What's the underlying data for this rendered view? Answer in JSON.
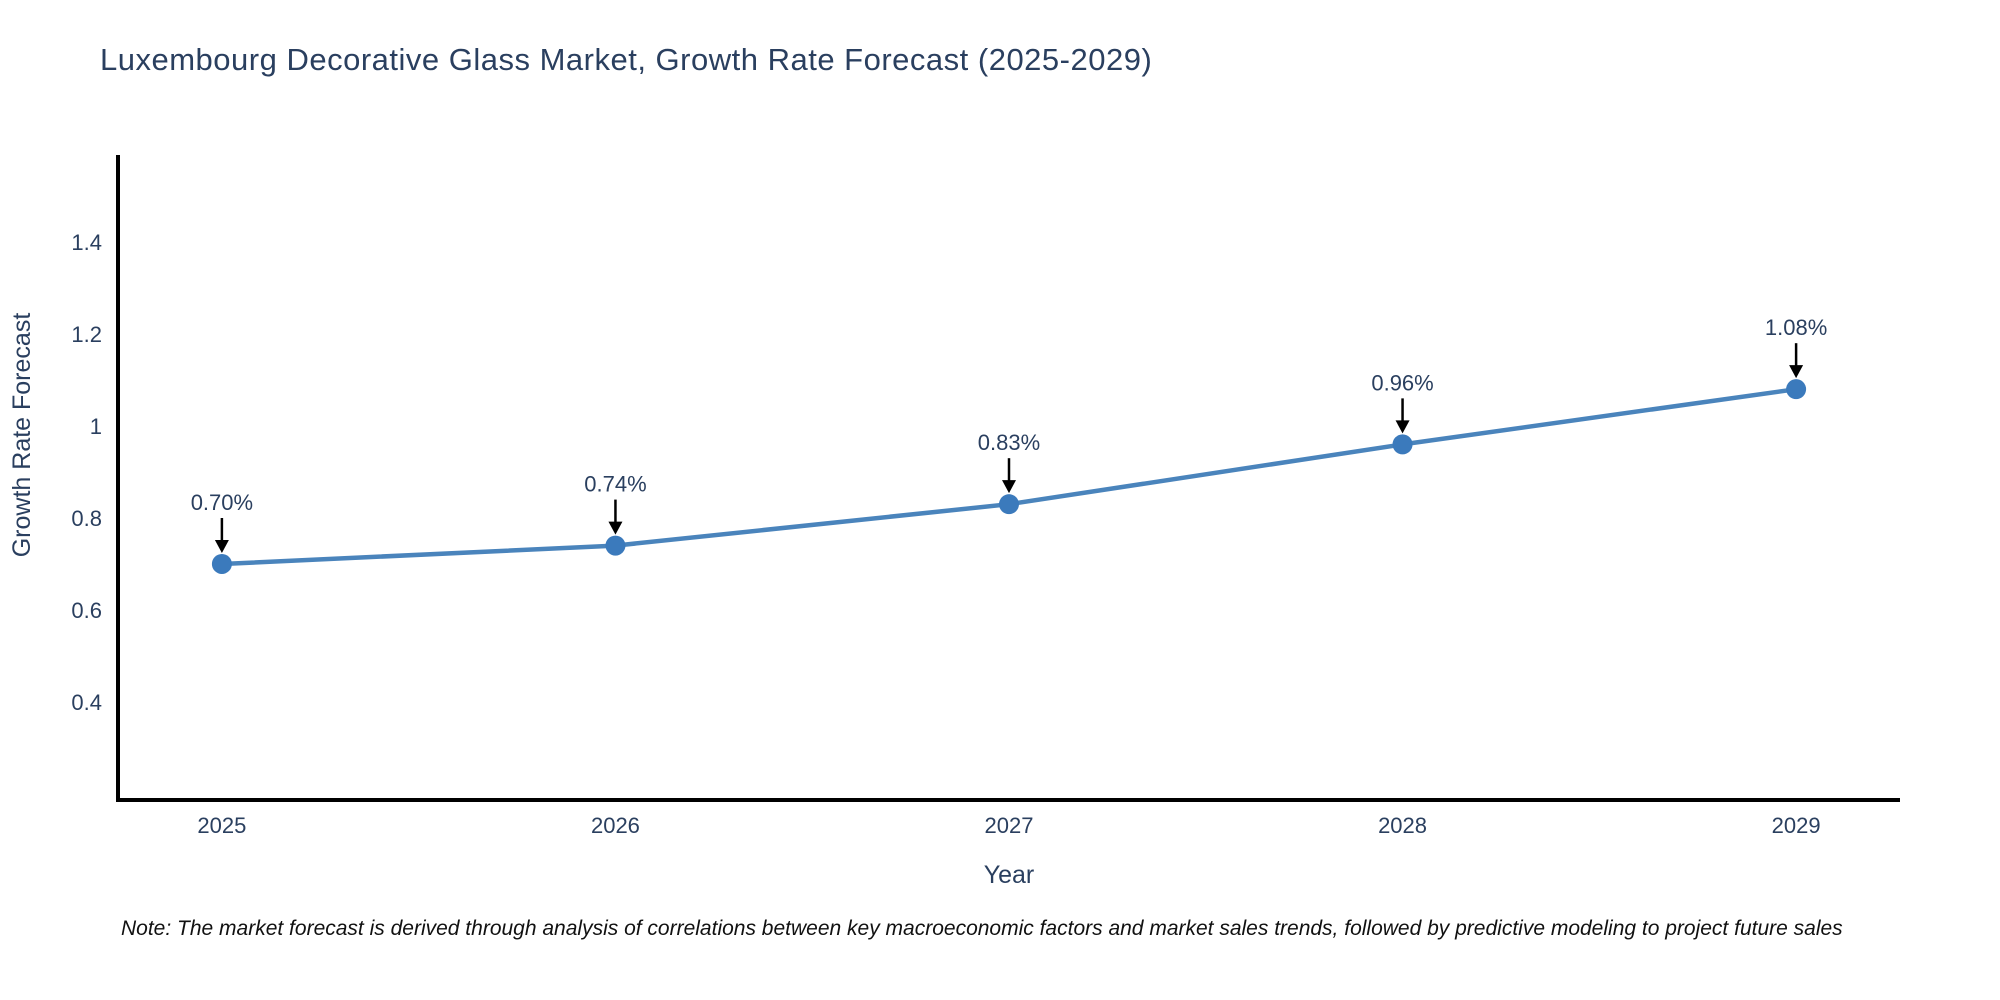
{
  "chart_data": {
    "type": "line",
    "title": "Luxembourg Decorative Glass Market, Growth Rate Forecast (2025-2029)",
    "xlabel": "Year",
    "ylabel": "Growth Rate Forecast",
    "categories": [
      2025,
      2026,
      2027,
      2028,
      2029
    ],
    "values": [
      0.7,
      0.74,
      0.83,
      0.96,
      1.08
    ],
    "point_labels": [
      "0.70%",
      "0.74%",
      "0.83%",
      "0.96%",
      "1.08%"
    ],
    "y_ticks": [
      0.4,
      0.6,
      0.8,
      1,
      1.2,
      1.4
    ],
    "y_tick_labels": [
      "0.4",
      "0.6",
      "0.8",
      "1",
      "1.2",
      "1.4"
    ],
    "x_tick_labels": [
      "2025",
      "2026",
      "2027",
      "2028",
      "2029"
    ],
    "x_range": [
      2024.736,
      2029.264
    ],
    "y_range": [
      0.187,
      1.589
    ],
    "grid": false,
    "legend": "none",
    "line_color": "#4a84bc",
    "marker_color": "#3b7abc",
    "axis_color": "#000000",
    "arrow_color": "#000000",
    "text_color": "#2a3f5f",
    "note_color": "#111111",
    "note": "Note: The market forecast is derived through analysis of correlations between key macroeconomic factors and market sales trends, followed by predictive modeling to project future sales"
  }
}
